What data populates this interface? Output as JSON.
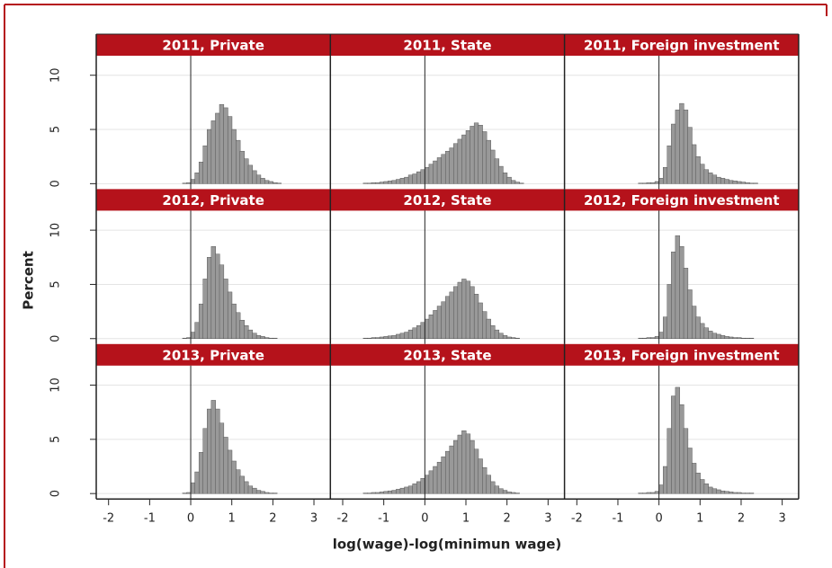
{
  "xlabel": "log(wage)-log(minimun wage)",
  "ylabel": "Percent",
  "chart_data": [
    {
      "type": "histogram",
      "title": "2011, Private",
      "xlim": [
        -2.3,
        3.4
      ],
      "ylim": [
        -0.5,
        11.8
      ],
      "xticks": [
        -2,
        -1,
        0,
        1,
        2,
        3
      ],
      "yticks": [
        0,
        5,
        10
      ],
      "grid": true,
      "vline": 0,
      "color": "#999999",
      "bins": [
        -2,
        -1.9,
        -1.8,
        -1.7,
        -1.6,
        -1.5,
        -1.4,
        -1.3,
        -1.2,
        -1.1,
        -1,
        -0.9,
        -0.8,
        -0.7,
        -0.6,
        -0.5,
        -0.4,
        -0.3,
        -0.2,
        -0.1,
        0,
        0.1,
        0.2,
        0.3,
        0.4,
        0.5,
        0.6,
        0.7,
        0.8,
        0.9,
        1,
        1.1,
        1.2,
        1.3,
        1.4,
        1.5,
        1.6,
        1.7,
        1.8,
        1.9,
        2,
        2.1,
        2.2,
        2.3,
        2.4,
        2.5,
        2.6,
        2.7,
        2.8,
        2.9,
        3
      ],
      "values": [
        0,
        0,
        0,
        0,
        0,
        0,
        0,
        0,
        0,
        0,
        0,
        0,
        0,
        0,
        0,
        0,
        0,
        0,
        0.05,
        0.1,
        0.4,
        1.0,
        2.0,
        3.5,
        5.0,
        5.8,
        6.5,
        7.3,
        7.0,
        6.2,
        5.0,
        4.0,
        3.0,
        2.3,
        1.7,
        1.2,
        0.8,
        0.5,
        0.3,
        0.2,
        0.1,
        0.05,
        0,
        0,
        0,
        0,
        0,
        0,
        0,
        0
      ]
    },
    {
      "type": "histogram",
      "title": "2011, State",
      "xlim": [
        -2.3,
        3.4
      ],
      "ylim": [
        -0.5,
        11.8
      ],
      "xticks": [
        -2,
        -1,
        0,
        1,
        2,
        3
      ],
      "yticks": [
        0,
        5,
        10
      ],
      "grid": true,
      "vline": 0,
      "color": "#999999",
      "bins": [
        -2,
        -1.9,
        -1.8,
        -1.7,
        -1.6,
        -1.5,
        -1.4,
        -1.3,
        -1.2,
        -1.1,
        -1,
        -0.9,
        -0.8,
        -0.7,
        -0.6,
        -0.5,
        -0.4,
        -0.3,
        -0.2,
        -0.1,
        0,
        0.1,
        0.2,
        0.3,
        0.4,
        0.5,
        0.6,
        0.7,
        0.8,
        0.9,
        1,
        1.1,
        1.2,
        1.3,
        1.4,
        1.5,
        1.6,
        1.7,
        1.8,
        1.9,
        2,
        2.1,
        2.2,
        2.3,
        2.4,
        2.5,
        2.6,
        2.7,
        2.8,
        2.9,
        3
      ],
      "values": [
        0,
        0,
        0,
        0,
        0,
        0.05,
        0.05,
        0.1,
        0.1,
        0.15,
        0.2,
        0.25,
        0.3,
        0.4,
        0.5,
        0.6,
        0.8,
        0.9,
        1.1,
        1.3,
        1.5,
        1.8,
        2.1,
        2.4,
        2.7,
        3.0,
        3.3,
        3.7,
        4.1,
        4.5,
        4.9,
        5.3,
        5.6,
        5.4,
        4.8,
        4.0,
        3.1,
        2.3,
        1.6,
        1.0,
        0.6,
        0.3,
        0.15,
        0.05,
        0,
        0,
        0,
        0,
        0,
        0
      ]
    },
    {
      "type": "histogram",
      "title": "2011, Foreign investment",
      "xlim": [
        -2.3,
        3.4
      ],
      "ylim": [
        -0.5,
        11.8
      ],
      "xticks": [
        -2,
        -1,
        0,
        1,
        2,
        3
      ],
      "yticks": [
        0,
        5,
        10
      ],
      "grid": true,
      "vline": 0,
      "color": "#999999",
      "bins": [
        -2,
        -1.9,
        -1.8,
        -1.7,
        -1.6,
        -1.5,
        -1.4,
        -1.3,
        -1.2,
        -1.1,
        -1,
        -0.9,
        -0.8,
        -0.7,
        -0.6,
        -0.5,
        -0.4,
        -0.3,
        -0.2,
        -0.1,
        0,
        0.1,
        0.2,
        0.3,
        0.4,
        0.5,
        0.6,
        0.7,
        0.8,
        0.9,
        1,
        1.1,
        1.2,
        1.3,
        1.4,
        1.5,
        1.6,
        1.7,
        1.8,
        1.9,
        2,
        2.1,
        2.2,
        2.3,
        2.4,
        2.5,
        2.6,
        2.7,
        2.8,
        2.9,
        3
      ],
      "values": [
        0,
        0,
        0,
        0,
        0,
        0,
        0,
        0,
        0,
        0,
        0,
        0,
        0,
        0,
        0,
        0.05,
        0.05,
        0.1,
        0.1,
        0.2,
        0.5,
        1.5,
        3.5,
        5.5,
        6.8,
        7.4,
        6.8,
        5.2,
        3.6,
        2.5,
        1.8,
        1.3,
        1.0,
        0.8,
        0.6,
        0.5,
        0.4,
        0.3,
        0.25,
        0.2,
        0.15,
        0.1,
        0.05,
        0.05,
        0,
        0,
        0,
        0,
        0,
        0
      ]
    },
    {
      "type": "histogram",
      "title": "2012, Private",
      "xlim": [
        -2.3,
        3.4
      ],
      "ylim": [
        -0.5,
        11.8
      ],
      "xticks": [
        -2,
        -1,
        0,
        1,
        2,
        3
      ],
      "yticks": [
        0,
        5,
        10
      ],
      "grid": true,
      "vline": 0,
      "color": "#999999",
      "bins": [
        -2,
        -1.9,
        -1.8,
        -1.7,
        -1.6,
        -1.5,
        -1.4,
        -1.3,
        -1.2,
        -1.1,
        -1,
        -0.9,
        -0.8,
        -0.7,
        -0.6,
        -0.5,
        -0.4,
        -0.3,
        -0.2,
        -0.1,
        0,
        0.1,
        0.2,
        0.3,
        0.4,
        0.5,
        0.6,
        0.7,
        0.8,
        0.9,
        1,
        1.1,
        1.2,
        1.3,
        1.4,
        1.5,
        1.6,
        1.7,
        1.8,
        1.9,
        2,
        2.1,
        2.2,
        2.3,
        2.4,
        2.5,
        2.6,
        2.7,
        2.8,
        2.9,
        3
      ],
      "values": [
        0,
        0,
        0,
        0,
        0,
        0,
        0,
        0,
        0,
        0,
        0,
        0,
        0,
        0,
        0,
        0,
        0,
        0,
        0.05,
        0.1,
        0.6,
        1.5,
        3.2,
        5.5,
        7.5,
        8.5,
        7.8,
        6.8,
        5.5,
        4.3,
        3.2,
        2.4,
        1.7,
        1.2,
        0.8,
        0.5,
        0.3,
        0.2,
        0.1,
        0.05,
        0.05,
        0,
        0,
        0,
        0,
        0,
        0,
        0,
        0,
        0
      ]
    },
    {
      "type": "histogram",
      "title": "2012, State",
      "xlim": [
        -2.3,
        3.4
      ],
      "ylim": [
        -0.5,
        11.8
      ],
      "xticks": [
        -2,
        -1,
        0,
        1,
        2,
        3
      ],
      "yticks": [
        0,
        5,
        10
      ],
      "grid": true,
      "vline": 0,
      "color": "#999999",
      "bins": [
        -2,
        -1.9,
        -1.8,
        -1.7,
        -1.6,
        -1.5,
        -1.4,
        -1.3,
        -1.2,
        -1.1,
        -1,
        -0.9,
        -0.8,
        -0.7,
        -0.6,
        -0.5,
        -0.4,
        -0.3,
        -0.2,
        -0.1,
        0,
        0.1,
        0.2,
        0.3,
        0.4,
        0.5,
        0.6,
        0.7,
        0.8,
        0.9,
        1,
        1.1,
        1.2,
        1.3,
        1.4,
        1.5,
        1.6,
        1.7,
        1.8,
        1.9,
        2,
        2.1,
        2.2,
        2.3,
        2.4,
        2.5,
        2.6,
        2.7,
        2.8,
        2.9,
        3
      ],
      "values": [
        0,
        0,
        0,
        0,
        0,
        0.05,
        0.05,
        0.1,
        0.1,
        0.15,
        0.2,
        0.25,
        0.3,
        0.4,
        0.5,
        0.6,
        0.8,
        1.0,
        1.2,
        1.5,
        1.8,
        2.2,
        2.6,
        3.0,
        3.4,
        3.9,
        4.3,
        4.8,
        5.2,
        5.5,
        5.3,
        4.8,
        4.1,
        3.3,
        2.5,
        1.8,
        1.2,
        0.8,
        0.5,
        0.3,
        0.15,
        0.1,
        0.05,
        0,
        0,
        0,
        0,
        0,
        0,
        0
      ]
    },
    {
      "type": "histogram",
      "title": "2012, Foreign investment",
      "xlim": [
        -2.3,
        3.4
      ],
      "ylim": [
        -0.5,
        11.8
      ],
      "xticks": [
        -2,
        -1,
        0,
        1,
        2,
        3
      ],
      "yticks": [
        0,
        5,
        10
      ],
      "grid": true,
      "vline": 0,
      "color": "#999999",
      "bins": [
        -2,
        -1.9,
        -1.8,
        -1.7,
        -1.6,
        -1.5,
        -1.4,
        -1.3,
        -1.2,
        -1.1,
        -1,
        -0.9,
        -0.8,
        -0.7,
        -0.6,
        -0.5,
        -0.4,
        -0.3,
        -0.2,
        -0.1,
        0,
        0.1,
        0.2,
        0.3,
        0.4,
        0.5,
        0.6,
        0.7,
        0.8,
        0.9,
        1,
        1.1,
        1.2,
        1.3,
        1.4,
        1.5,
        1.6,
        1.7,
        1.8,
        1.9,
        2,
        2.1,
        2.2,
        2.3,
        2.4,
        2.5,
        2.6,
        2.7,
        2.8,
        2.9,
        3
      ],
      "values": [
        0,
        0,
        0,
        0,
        0,
        0,
        0,
        0,
        0,
        0,
        0,
        0,
        0,
        0,
        0,
        0.05,
        0.05,
        0.1,
        0.1,
        0.2,
        0.6,
        2.0,
        5.0,
        8.0,
        9.5,
        8.5,
        6.5,
        4.5,
        3.0,
        2.0,
        1.4,
        1.0,
        0.7,
        0.5,
        0.4,
        0.3,
        0.2,
        0.15,
        0.1,
        0.1,
        0.05,
        0.05,
        0.05,
        0,
        0,
        0,
        0,
        0,
        0,
        0
      ]
    },
    {
      "type": "histogram",
      "title": "2013, Private",
      "xlim": [
        -2.3,
        3.4
      ],
      "ylim": [
        -0.5,
        11.8
      ],
      "xticks": [
        -2,
        -1,
        0,
        1,
        2,
        3
      ],
      "yticks": [
        0,
        5,
        10
      ],
      "grid": true,
      "vline": 0,
      "color": "#999999",
      "bins": [
        -2,
        -1.9,
        -1.8,
        -1.7,
        -1.6,
        -1.5,
        -1.4,
        -1.3,
        -1.2,
        -1.1,
        -1,
        -0.9,
        -0.8,
        -0.7,
        -0.6,
        -0.5,
        -0.4,
        -0.3,
        -0.2,
        -0.1,
        0,
        0.1,
        0.2,
        0.3,
        0.4,
        0.5,
        0.6,
        0.7,
        0.8,
        0.9,
        1,
        1.1,
        1.2,
        1.3,
        1.4,
        1.5,
        1.6,
        1.7,
        1.8,
        1.9,
        2,
        2.1,
        2.2,
        2.3,
        2.4,
        2.5,
        2.6,
        2.7,
        2.8,
        2.9,
        3
      ],
      "values": [
        0,
        0,
        0,
        0,
        0,
        0,
        0,
        0,
        0,
        0,
        0,
        0,
        0,
        0,
        0,
        0,
        0,
        0,
        0.05,
        0.1,
        1.0,
        2.0,
        3.8,
        6.0,
        7.8,
        8.6,
        7.8,
        6.5,
        5.2,
        4.0,
        3.0,
        2.2,
        1.6,
        1.1,
        0.7,
        0.5,
        0.3,
        0.2,
        0.1,
        0.05,
        0.05,
        0,
        0,
        0,
        0,
        0,
        0,
        0,
        0,
        0
      ]
    },
    {
      "type": "histogram",
      "title": "2013, State",
      "xlim": [
        -2.3,
        3.4
      ],
      "ylim": [
        -0.5,
        11.8
      ],
      "xticks": [
        -2,
        -1,
        0,
        1,
        2,
        3
      ],
      "yticks": [
        0,
        5,
        10
      ],
      "grid": true,
      "vline": 0,
      "color": "#999999",
      "bins": [
        -2,
        -1.9,
        -1.8,
        -1.7,
        -1.6,
        -1.5,
        -1.4,
        -1.3,
        -1.2,
        -1.1,
        -1,
        -0.9,
        -0.8,
        -0.7,
        -0.6,
        -0.5,
        -0.4,
        -0.3,
        -0.2,
        -0.1,
        0,
        0.1,
        0.2,
        0.3,
        0.4,
        0.5,
        0.6,
        0.7,
        0.8,
        0.9,
        1,
        1.1,
        1.2,
        1.3,
        1.4,
        1.5,
        1.6,
        1.7,
        1.8,
        1.9,
        2,
        2.1,
        2.2,
        2.3,
        2.4,
        2.5,
        2.6,
        2.7,
        2.8,
        2.9,
        3
      ],
      "values": [
        0,
        0,
        0,
        0,
        0,
        0.05,
        0.05,
        0.1,
        0.1,
        0.15,
        0.2,
        0.25,
        0.3,
        0.4,
        0.5,
        0.6,
        0.7,
        0.9,
        1.1,
        1.4,
        1.7,
        2.1,
        2.5,
        2.9,
        3.4,
        3.9,
        4.4,
        4.9,
        5.4,
        5.8,
        5.5,
        4.9,
        4.1,
        3.2,
        2.4,
        1.7,
        1.1,
        0.7,
        0.45,
        0.3,
        0.15,
        0.1,
        0.05,
        0,
        0,
        0,
        0,
        0,
        0,
        0
      ]
    },
    {
      "type": "histogram",
      "title": "2013, Foreign investment",
      "xlim": [
        -2.3,
        3.4
      ],
      "ylim": [
        -0.5,
        11.8
      ],
      "xticks": [
        -2,
        -1,
        0,
        1,
        2,
        3
      ],
      "yticks": [
        0,
        5,
        10
      ],
      "grid": true,
      "vline": 0,
      "color": "#999999",
      "bins": [
        -2,
        -1.9,
        -1.8,
        -1.7,
        -1.6,
        -1.5,
        -1.4,
        -1.3,
        -1.2,
        -1.1,
        -1,
        -0.9,
        -0.8,
        -0.7,
        -0.6,
        -0.5,
        -0.4,
        -0.3,
        -0.2,
        -0.1,
        0,
        0.1,
        0.2,
        0.3,
        0.4,
        0.5,
        0.6,
        0.7,
        0.8,
        0.9,
        1,
        1.1,
        1.2,
        1.3,
        1.4,
        1.5,
        1.6,
        1.7,
        1.8,
        1.9,
        2,
        2.1,
        2.2,
        2.3,
        2.4,
        2.5,
        2.6,
        2.7,
        2.8,
        2.9,
        3
      ],
      "values": [
        0,
        0,
        0,
        0,
        0,
        0,
        0,
        0,
        0,
        0,
        0,
        0,
        0,
        0,
        0,
        0.05,
        0.05,
        0.1,
        0.1,
        0.2,
        0.8,
        2.5,
        6.0,
        9.0,
        9.8,
        8.2,
        6.0,
        4.2,
        2.8,
        1.9,
        1.3,
        0.9,
        0.6,
        0.45,
        0.35,
        0.25,
        0.2,
        0.15,
        0.1,
        0.1,
        0.05,
        0.05,
        0.05,
        0,
        0,
        0,
        0,
        0,
        0,
        0
      ]
    }
  ]
}
